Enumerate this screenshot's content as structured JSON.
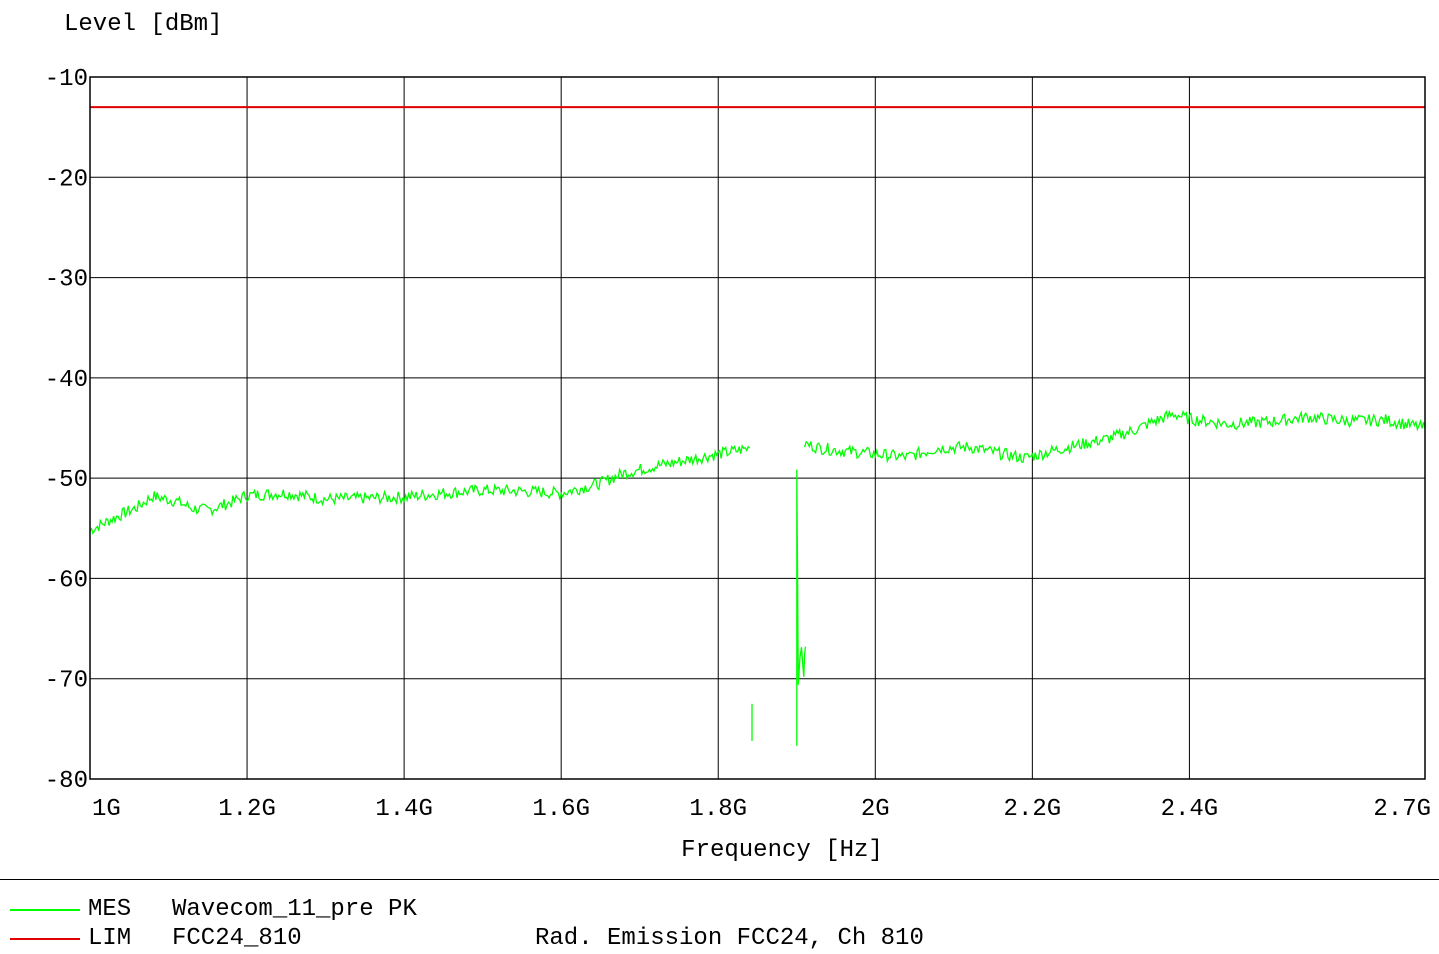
{
  "chart_data": {
    "type": "line",
    "ylabel": "Level [dBm]",
    "xlabel": "Frequency [Hz]",
    "xlim": [
      1000000000,
      2700000000
    ],
    "ylim": [
      -80,
      -10
    ],
    "grid": true,
    "x_ticks": [
      1000000000,
      1200000000,
      1400000000,
      1600000000,
      1800000000,
      2000000000,
      2200000000,
      2400000000,
      2700000000
    ],
    "x_tick_labels": [
      "1G",
      "1.2G",
      "1.4G",
      "1.6G",
      "1.8G",
      "2G",
      "2.2G",
      "2.4G",
      "2.7G"
    ],
    "y_ticks": [
      -10,
      -20,
      -30,
      -40,
      -50,
      -60,
      -70,
      -80
    ],
    "y_tick_labels": [
      "-10",
      "-20",
      "-30",
      "-40",
      "-50",
      "-60",
      "-70",
      "-80"
    ],
    "series": [
      {
        "name": "Wavecom_11_pre PK",
        "color": "#00ff00",
        "segments": [
          [
            [
              1000000000,
              -55.2
            ],
            [
              1030000000,
              -54.0
            ],
            [
              1060000000,
              -52.9
            ],
            [
              1080000000,
              -51.8
            ],
            [
              1110000000,
              -52.3
            ],
            [
              1130000000,
              -53.0
            ],
            [
              1150000000,
              -53.2
            ],
            [
              1180000000,
              -52.4
            ],
            [
              1200000000,
              -51.7
            ],
            [
              1250000000,
              -51.5
            ],
            [
              1300000000,
              -52.1
            ],
            [
              1350000000,
              -52.0
            ],
            [
              1400000000,
              -51.9
            ],
            [
              1450000000,
              -51.5
            ],
            [
              1500000000,
              -51.2
            ],
            [
              1550000000,
              -51.3
            ],
            [
              1600000000,
              -51.5
            ],
            [
              1650000000,
              -50.5
            ],
            [
              1680000000,
              -49.5
            ],
            [
              1720000000,
              -48.8
            ],
            [
              1760000000,
              -48.2
            ],
            [
              1800000000,
              -47.6
            ],
            [
              1840000000,
              -47.0
            ]
          ],
          [
            [
              1843000000,
              -72.5
            ],
            [
              1843000000,
              -76.2
            ]
          ],
          [
            [
              1900000000,
              -76.2
            ],
            [
              1900000000,
              -49.0
            ],
            [
              1901000000,
              -60.0
            ],
            [
              1902000000,
              -70.0
            ],
            [
              1906000000,
              -67.0
            ],
            [
              1909000000,
              -69.5
            ],
            [
              1911000000,
              -66.8
            ]
          ],
          [
            [
              1910000000,
              -46.6
            ],
            [
              1930000000,
              -47.0
            ],
            [
              1960000000,
              -47.3
            ],
            [
              1990000000,
              -47.5
            ],
            [
              2000000000,
              -47.6
            ],
            [
              2040000000,
              -47.9
            ],
            [
              2080000000,
              -47.0
            ],
            [
              2120000000,
              -46.9
            ],
            [
              2150000000,
              -47.4
            ],
            [
              2190000000,
              -48.0
            ],
            [
              2200000000,
              -47.8
            ],
            [
              2240000000,
              -47.0
            ],
            [
              2270000000,
              -46.5
            ],
            [
              2300000000,
              -46.0
            ],
            [
              2330000000,
              -45.2
            ],
            [
              2350000000,
              -44.5
            ],
            [
              2380000000,
              -43.6
            ],
            [
              2400000000,
              -44.1
            ],
            [
              2450000000,
              -44.6
            ],
            [
              2500000000,
              -44.4
            ],
            [
              2550000000,
              -43.9
            ],
            [
              2600000000,
              -44.3
            ],
            [
              2650000000,
              -44.2
            ],
            [
              2700000000,
              -45.0
            ]
          ]
        ]
      },
      {
        "name": "FCC24_810",
        "color": "#e00000",
        "segments": [
          [
            [
              1000000000,
              -13
            ],
            [
              2700000000,
              -13
            ]
          ]
        ]
      }
    ]
  },
  "legend": [
    {
      "tag": "MES",
      "name": "Wavecom_11_pre PK",
      "desc": "",
      "color": "#00ff00"
    },
    {
      "tag": "LIM",
      "name": "FCC24_810",
      "desc": "Rad. Emission FCC24, Ch 810",
      "color": "#e00000"
    }
  ]
}
